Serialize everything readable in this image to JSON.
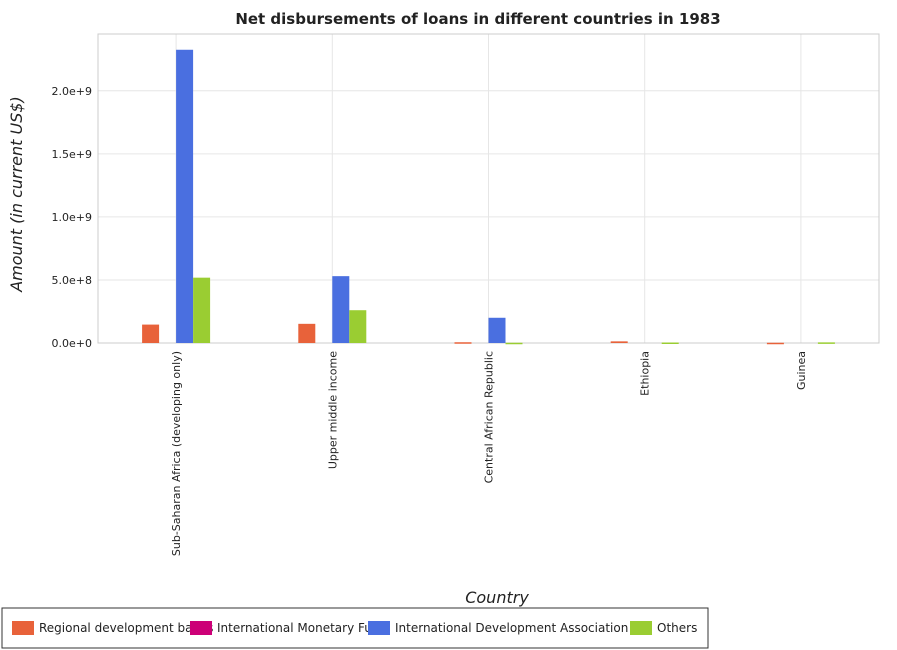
{
  "chart_data": {
    "type": "bar",
    "title": "Net disbursements of loans in different countries in 1983",
    "xlabel": "Country",
    "ylabel": "Amount (in current US$)",
    "ylim": [
      0,
      2450000000
    ],
    "yticks": [
      0,
      500000000,
      1000000000,
      1500000000,
      2000000000
    ],
    "ytick_labels": [
      "0.0e+0",
      "5.0e+8",
      "1.0e+9",
      "1.5e+9",
      "2.0e+9"
    ],
    "grid": true,
    "legend_position": "bottom",
    "categories": [
      "Sub-Saharan Africa (developing only)",
      "Upper middle income",
      "Central African Republic",
      "Ethiopia",
      "Guinea"
    ],
    "series": [
      {
        "name": "Regional development banks",
        "color": "#e8623a",
        "values": [
          146000000,
          152000000,
          6000000,
          13000000,
          2000000
        ]
      },
      {
        "name": "International Monetary Fund",
        "color": "#cc0077",
        "values": [
          0,
          0,
          0,
          0,
          0
        ]
      },
      {
        "name": "International Development Association",
        "color": "#4a6fe0",
        "values": [
          2325000000,
          530000000,
          200000000,
          0,
          0
        ]
      },
      {
        "name": "Others",
        "color": "#9acd32",
        "values": [
          518000000,
          260000000,
          2000000,
          4000000,
          5000000
        ]
      }
    ]
  }
}
